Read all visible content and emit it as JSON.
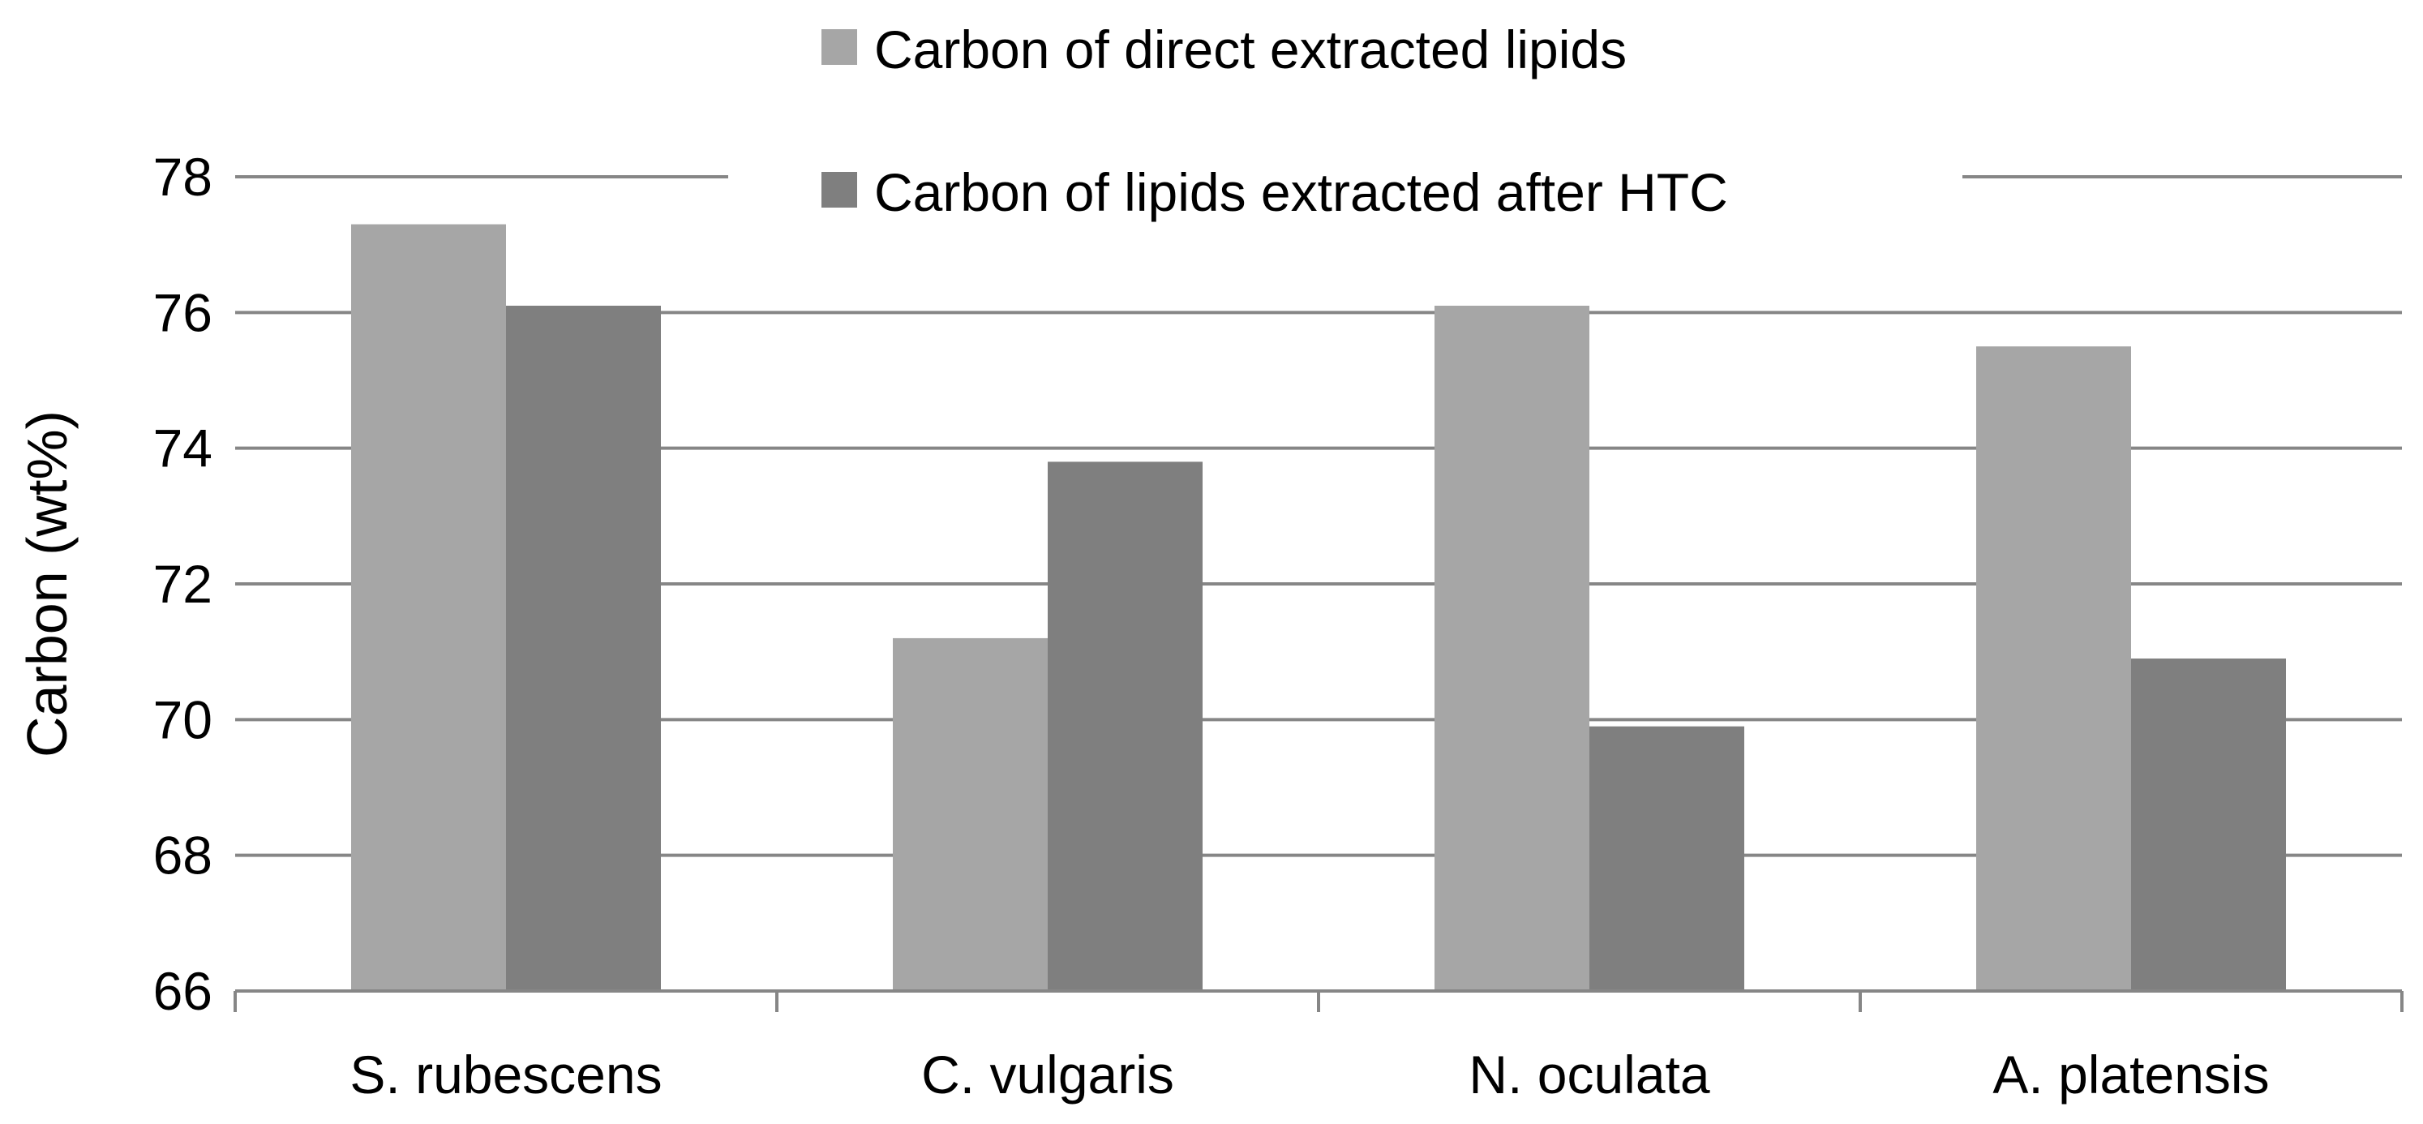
{
  "chart_data": {
    "type": "bar",
    "title": "",
    "xlabel": "",
    "ylabel": "Carbon (wt%)",
    "ylim": [
      66,
      78
    ],
    "yticks": [
      66,
      68,
      70,
      72,
      74,
      76,
      78
    ],
    "grid": true,
    "legend_position": "top-center",
    "categories": [
      "S. rubescens",
      "C. vulgaris",
      "N. oculata",
      "A. platensis"
    ],
    "series": [
      {
        "name": "Carbon of direct extracted lipids",
        "color": "#a6a6a6",
        "values": [
          77.3,
          71.2,
          76.1,
          75.5
        ]
      },
      {
        "name": "Carbon of lipids extracted after HTC",
        "color": "#7f7f7f",
        "values": [
          76.1,
          73.8,
          69.9,
          70.9
        ]
      }
    ]
  }
}
